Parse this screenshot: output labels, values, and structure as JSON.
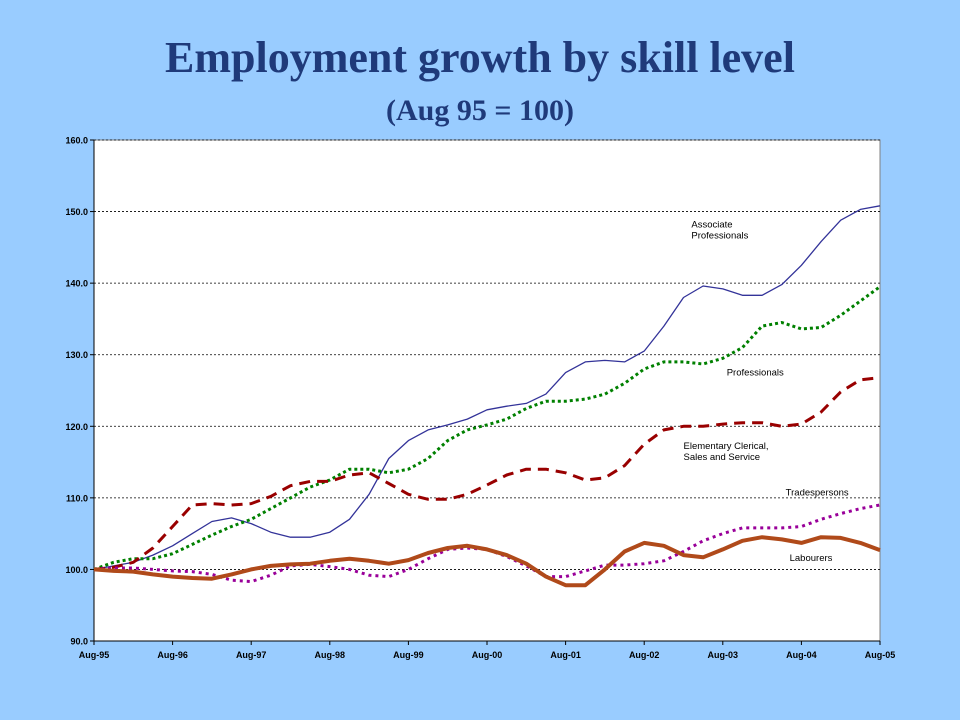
{
  "header": {
    "title": "Employment growth by skill level",
    "subtitle": "(Aug 95 = 100)"
  },
  "colors": {
    "background": "#99ccff",
    "plot_area": "#ffffff",
    "title": "#1f3a7a",
    "associate_professionals": "#333399",
    "professionals": "#008000",
    "elementary_clerical": "#990000",
    "tradespersons": "#990099",
    "labourers": "#b04a1a"
  },
  "chart_data": {
    "type": "line",
    "title": "Employment growth by skill level",
    "subtitle": "(Aug 95 = 100)",
    "xlabel": "",
    "ylabel": "",
    "x_ticks": [
      "Aug-95",
      "Aug-96",
      "Aug-97",
      "Aug-98",
      "Aug-99",
      "Aug-00",
      "Aug-01",
      "Aug-02",
      "Aug-03",
      "Aug-04",
      "Aug-05"
    ],
    "x_range": [
      0,
      40
    ],
    "ylim": [
      90,
      160
    ],
    "y_ticks": [
      "90.0",
      "100.0",
      "110.0",
      "120.0",
      "130.0",
      "140.0",
      "150.0",
      "160.0"
    ],
    "grid": "horizontal dashed",
    "legend": "inline labels",
    "x": [
      "Aug-95",
      "Nov-95",
      "Feb-96",
      "May-96",
      "Aug-96",
      "Nov-96",
      "Feb-97",
      "May-97",
      "Aug-97",
      "Nov-97",
      "Feb-98",
      "May-98",
      "Aug-98",
      "Nov-98",
      "Feb-99",
      "May-99",
      "Aug-99",
      "Nov-99",
      "Feb-00",
      "May-00",
      "Aug-00",
      "Nov-00",
      "Feb-01",
      "May-01",
      "Aug-01",
      "Nov-01",
      "Feb-02",
      "May-02",
      "Aug-02",
      "Nov-02",
      "Feb-03",
      "May-03",
      "Aug-03",
      "Nov-03",
      "Feb-04",
      "May-04",
      "Aug-04",
      "Nov-04",
      "Feb-05",
      "May-05",
      "Aug-05"
    ],
    "series": [
      {
        "name": "Associate Professionals",
        "style": "solid-thin",
        "values": [
          100,
          100.5,
          101,
          102,
          103.3,
          105,
          106.7,
          107.2,
          106.4,
          105.2,
          104.5,
          104.5,
          105.2,
          107,
          110.5,
          115.5,
          118,
          119.5,
          120.2,
          121,
          122.3,
          122.8,
          123.2,
          124.5,
          127.5,
          129,
          129.2,
          129,
          130.5,
          134,
          138,
          139.6,
          139.2,
          138.3,
          138.3,
          139.8,
          142.5,
          145.8,
          148.8,
          150.3,
          150.8
        ]
      },
      {
        "name": "Professionals",
        "style": "dotted",
        "values": [
          100,
          101,
          101.5,
          101.5,
          102.2,
          103.5,
          104.8,
          106,
          107,
          108.5,
          110,
          111.5,
          112.5,
          114,
          114,
          113.5,
          114,
          115.5,
          118,
          119.5,
          120.2,
          121,
          122.5,
          123.5,
          123.5,
          123.8,
          124.5,
          126,
          128,
          129,
          129,
          128.7,
          129.5,
          131,
          134,
          134.5,
          133.6,
          133.8,
          135.5,
          137.5,
          139.5
        ]
      },
      {
        "name": "Elementary Clerical, Sales and Service",
        "style": "dashed",
        "values": [
          100,
          100.3,
          101,
          103,
          106,
          109,
          109.2,
          109,
          109.2,
          110.2,
          111.7,
          112.3,
          112.3,
          113.2,
          113.5,
          112,
          110.5,
          109.8,
          109.8,
          110.5,
          111.8,
          113.2,
          114,
          114,
          113.5,
          112.5,
          112.8,
          114.5,
          117.5,
          119.5,
          120,
          120,
          120.3,
          120.5,
          120.5,
          120,
          120.3,
          122,
          124.8,
          126.5,
          126.8
        ]
      },
      {
        "name": "Tradespersons",
        "style": "dotted",
        "values": [
          100,
          100.2,
          100.2,
          100,
          99.8,
          99.7,
          99.3,
          98.5,
          98.3,
          99.2,
          100.5,
          100.7,
          100.4,
          100,
          99.2,
          99,
          100,
          101.5,
          102.8,
          103,
          102.8,
          101.8,
          100.5,
          99,
          99,
          99.8,
          100.6,
          100.6,
          100.8,
          101.2,
          102.5,
          104,
          105,
          105.8,
          105.8,
          105.8,
          106,
          107,
          107.8,
          108.5,
          109
        ]
      },
      {
        "name": "Labourers",
        "style": "solid-thick",
        "values": [
          100,
          99.8,
          99.7,
          99.3,
          99,
          98.8,
          98.7,
          99.3,
          100,
          100.5,
          100.7,
          100.8,
          101.2,
          101.5,
          101.2,
          100.8,
          101.3,
          102.3,
          103,
          103.3,
          102.8,
          102,
          100.8,
          99,
          97.8,
          97.8,
          100,
          102.5,
          103.7,
          103.3,
          102,
          101.7,
          102.8,
          104,
          104.5,
          104.2,
          103.7,
          104.5,
          104.4,
          103.7,
          102.7
        ]
      }
    ],
    "annotations": [
      {
        "lines": [
          "Associate",
          "Professionals"
        ],
        "series": "Associate Professionals"
      },
      {
        "lines": [
          "Professionals"
        ],
        "series": "Professionals"
      },
      {
        "lines": [
          "Elementary Clerical,",
          "Sales and Service"
        ],
        "series": "Elementary Clerical, Sales and Service"
      },
      {
        "lines": [
          "Tradespersons"
        ],
        "series": "Tradespersons"
      },
      {
        "lines": [
          "Labourers"
        ],
        "series": "Labourers"
      }
    ]
  }
}
